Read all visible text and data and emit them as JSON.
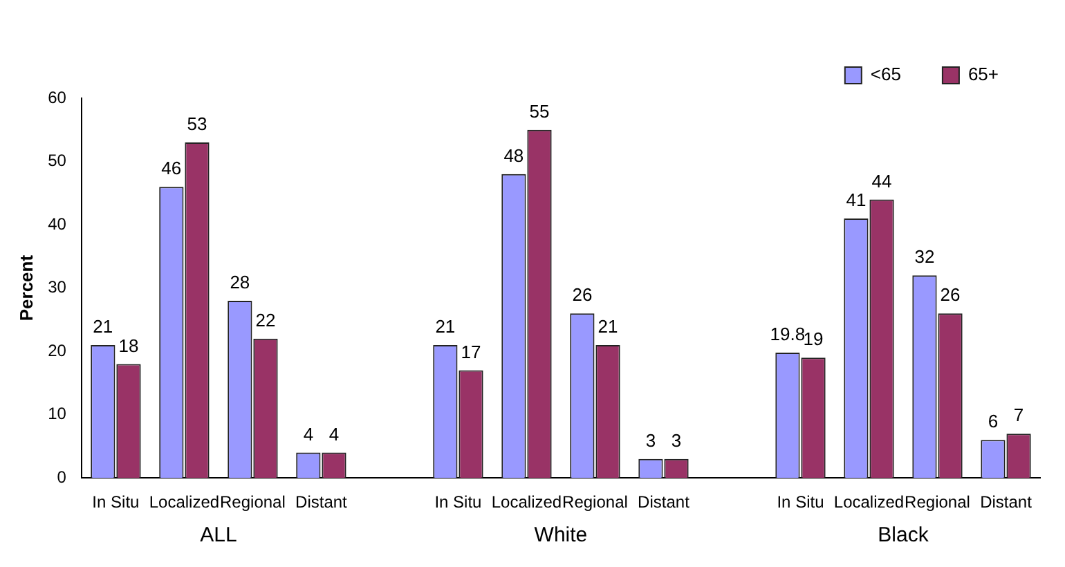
{
  "chart_data": {
    "type": "bar",
    "ylabel": "Percent",
    "categories": [
      "In Situ",
      "Localized",
      "Regional",
      "Distant",
      null,
      "In Situ",
      "Localized",
      "Regional",
      "Distant",
      null,
      "In Situ",
      "Localized",
      "Regional",
      "Distant"
    ],
    "series": [
      {
        "name": "<65",
        "color": "#9999ff",
        "values": [
          21,
          46,
          28,
          4,
          null,
          21,
          48,
          26,
          3,
          null,
          19.8,
          41,
          32,
          6
        ]
      },
      {
        "name": "65+",
        "color": "#993366",
        "values": [
          18,
          53,
          22,
          4,
          null,
          17,
          55,
          21,
          3,
          null,
          19,
          44,
          26,
          7
        ]
      }
    ],
    "annotations": [
      "ALL",
      "White",
      "Black"
    ],
    "ylim": [
      0,
      60
    ],
    "yticks": [
      0,
      10,
      20,
      30,
      40,
      50,
      60
    ],
    "grid": false,
    "legend": "top right",
    "data_labels": true
  }
}
